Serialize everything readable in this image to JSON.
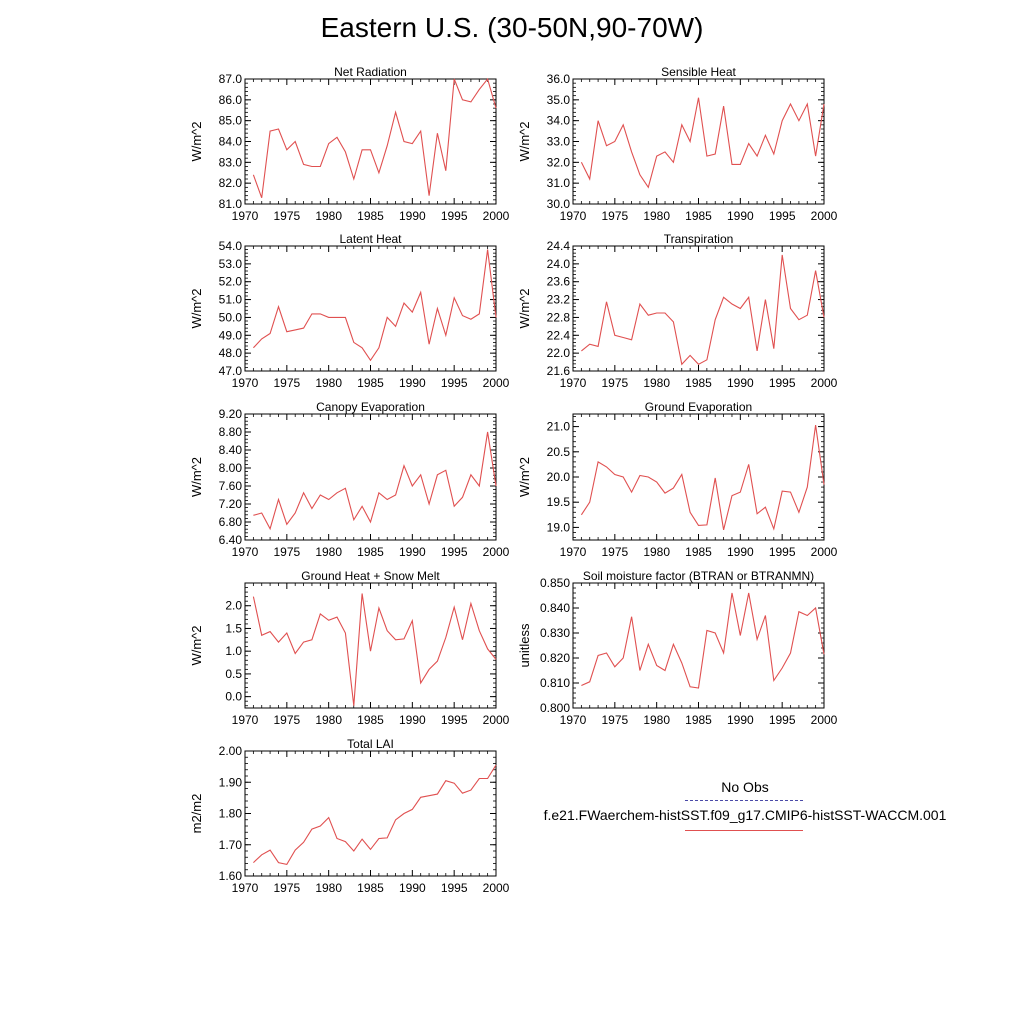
{
  "title": "Eastern U.S. (30-50N,90-70W)",
  "legend": {
    "obs_label": "No Obs",
    "obs_color": "#4a4aa8",
    "model_label": "f.e21.FWaerchem-histSST.f09_g17.CMIP6-histSST-WACCM.001",
    "model_color": "#e05050"
  },
  "chart_data": [
    {
      "type": "line",
      "title": "Net Radiation",
      "ylabel": "W/m^2",
      "xlim": [
        1970,
        2000
      ],
      "ylim": [
        81.0,
        87.0
      ],
      "yticks": [
        "81.0",
        "82.0",
        "83.0",
        "84.0",
        "85.0",
        "86.0",
        "87.0"
      ],
      "xticks": [
        "1970",
        "1975",
        "1980",
        "1985",
        "1990",
        "1995",
        "2000"
      ],
      "x": [
        1971,
        1972,
        1973,
        1974,
        1975,
        1976,
        1977,
        1978,
        1979,
        1980,
        1981,
        1982,
        1983,
        1984,
        1985,
        1986,
        1987,
        1988,
        1989,
        1990,
        1991,
        1992,
        1993,
        1994,
        1995,
        1996,
        1997,
        1998,
        1999,
        2000
      ],
      "series": [
        {
          "values": [
            82.4,
            81.3,
            84.5,
            84.6,
            83.6,
            84.0,
            82.9,
            82.8,
            82.8,
            83.9,
            84.2,
            83.5,
            82.2,
            83.6,
            83.6,
            82.5,
            83.8,
            85.4,
            84.0,
            83.9,
            84.5,
            81.4,
            84.4,
            82.6,
            87.0,
            86.0,
            85.9,
            86.5,
            87.0,
            85.6
          ]
        }
      ]
    },
    {
      "type": "line",
      "title": "Sensible Heat",
      "ylabel": "W/m^2",
      "xlim": [
        1970,
        2000
      ],
      "ylim": [
        30.0,
        36.0
      ],
      "yticks": [
        "30.0",
        "31.0",
        "32.0",
        "33.0",
        "34.0",
        "35.0",
        "36.0"
      ],
      "xticks": [
        "1970",
        "1975",
        "1980",
        "1985",
        "1990",
        "1995",
        "2000"
      ],
      "x": [
        1971,
        1972,
        1973,
        1974,
        1975,
        1976,
        1977,
        1978,
        1979,
        1980,
        1981,
        1982,
        1983,
        1984,
        1985,
        1986,
        1987,
        1988,
        1989,
        1990,
        1991,
        1992,
        1993,
        1994,
        1995,
        1996,
        1997,
        1998,
        1999,
        2000
      ],
      "series": [
        {
          "values": [
            32.0,
            31.2,
            34.0,
            32.8,
            33.0,
            33.8,
            32.5,
            31.4,
            30.8,
            32.3,
            32.5,
            32.0,
            33.8,
            33.0,
            35.1,
            32.3,
            32.4,
            34.7,
            31.9,
            31.9,
            32.9,
            32.3,
            33.3,
            32.4,
            34.0,
            34.8,
            34.0,
            34.8,
            32.3,
            34.8
          ]
        }
      ]
    },
    {
      "type": "line",
      "title": "Latent Heat",
      "ylabel": "W/m^2",
      "xlim": [
        1970,
        2000
      ],
      "ylim": [
        47.0,
        54.0
      ],
      "yticks": [
        "47.0",
        "48.0",
        "49.0",
        "50.0",
        "51.0",
        "52.0",
        "53.0",
        "54.0"
      ],
      "xticks": [
        "1970",
        "1975",
        "1980",
        "1985",
        "1990",
        "1995",
        "2000"
      ],
      "x": [
        1971,
        1972,
        1973,
        1974,
        1975,
        1976,
        1977,
        1978,
        1979,
        1980,
        1981,
        1982,
        1983,
        1984,
        1985,
        1986,
        1987,
        1988,
        1989,
        1990,
        1991,
        1992,
        1993,
        1994,
        1995,
        1996,
        1997,
        1998,
        1999,
        2000
      ],
      "series": [
        {
          "values": [
            48.3,
            48.8,
            49.1,
            50.6,
            49.2,
            49.3,
            49.4,
            50.2,
            50.2,
            50.0,
            50.0,
            50.0,
            48.6,
            48.3,
            47.6,
            48.3,
            50.0,
            49.5,
            50.8,
            50.3,
            51.4,
            48.5,
            50.5,
            49.0,
            51.1,
            50.1,
            49.9,
            50.2,
            53.8,
            50.0
          ]
        }
      ]
    },
    {
      "type": "line",
      "title": "Transpiration",
      "ylabel": "W/m^2",
      "xlim": [
        1970,
        2000
      ],
      "ylim": [
        21.6,
        24.4
      ],
      "yticks": [
        "21.6",
        "22.0",
        "22.4",
        "22.8",
        "23.2",
        "23.6",
        "24.0",
        "24.4"
      ],
      "xticks": [
        "1970",
        "1975",
        "1980",
        "1985",
        "1990",
        "1995",
        "2000"
      ],
      "x": [
        1971,
        1972,
        1973,
        1974,
        1975,
        1976,
        1977,
        1978,
        1979,
        1980,
        1981,
        1982,
        1983,
        1984,
        1985,
        1986,
        1987,
        1988,
        1989,
        1990,
        1991,
        1992,
        1993,
        1994,
        1995,
        1996,
        1997,
        1998,
        1999,
        2000
      ],
      "series": [
        {
          "values": [
            22.05,
            22.2,
            22.15,
            23.15,
            22.4,
            22.35,
            22.3,
            23.1,
            22.85,
            22.9,
            22.9,
            22.7,
            21.75,
            21.95,
            21.75,
            21.85,
            22.75,
            23.25,
            23.1,
            23.0,
            23.25,
            22.05,
            23.2,
            22.1,
            24.2,
            23.0,
            22.75,
            22.85,
            23.85,
            22.8
          ]
        }
      ]
    },
    {
      "type": "line",
      "title": "Canopy Evaporation",
      "ylabel": "W/m^2",
      "xlim": [
        1970,
        2000
      ],
      "ylim": [
        6.4,
        9.2
      ],
      "yticks": [
        "6.40",
        "6.80",
        "7.20",
        "7.60",
        "8.00",
        "8.40",
        "8.80",
        "9.20"
      ],
      "xticks": [
        "1970",
        "1975",
        "1980",
        "1985",
        "1990",
        "1995",
        "2000"
      ],
      "x": [
        1971,
        1972,
        1973,
        1974,
        1975,
        1976,
        1977,
        1978,
        1979,
        1980,
        1981,
        1982,
        1983,
        1984,
        1985,
        1986,
        1987,
        1988,
        1989,
        1990,
        1991,
        1992,
        1993,
        1994,
        1995,
        1996,
        1997,
        1998,
        1999,
        2000
      ],
      "series": [
        {
          "values": [
            6.95,
            7.0,
            6.65,
            7.3,
            6.75,
            7.0,
            7.45,
            7.1,
            7.4,
            7.3,
            7.45,
            7.55,
            6.85,
            7.15,
            6.8,
            7.45,
            7.3,
            7.4,
            8.05,
            7.6,
            7.85,
            7.2,
            7.85,
            7.95,
            7.15,
            7.35,
            7.85,
            7.6,
            8.8,
            7.6
          ]
        }
      ]
    },
    {
      "type": "line",
      "title": "Ground Evaporation",
      "ylabel": "W/m^2",
      "xlim": [
        1970,
        2000
      ],
      "ylim": [
        18.75,
        21.25
      ],
      "yticks": [
        "19.0",
        "19.5",
        "20.0",
        "20.5",
        "21.0"
      ],
      "yticks_values": [
        19.0,
        19.5,
        20.0,
        20.5,
        21.0
      ],
      "xticks": [
        "1970",
        "1975",
        "1980",
        "1985",
        "1990",
        "1995",
        "2000"
      ],
      "x": [
        1971,
        1972,
        1973,
        1974,
        1975,
        1976,
        1977,
        1978,
        1979,
        1980,
        1981,
        1982,
        1983,
        1984,
        1985,
        1986,
        1987,
        1988,
        1989,
        1990,
        1991,
        1992,
        1993,
        1994,
        1995,
        1996,
        1997,
        1998,
        1999,
        2000
      ],
      "series": [
        {
          "values": [
            19.25,
            19.5,
            20.3,
            20.2,
            20.05,
            20.0,
            19.7,
            20.03,
            20.0,
            19.9,
            19.68,
            19.78,
            20.05,
            19.3,
            19.04,
            19.05,
            19.98,
            18.95,
            19.63,
            19.7,
            20.25,
            19.27,
            19.4,
            18.97,
            19.72,
            19.7,
            19.3,
            19.8,
            21.03,
            19.85
          ]
        }
      ]
    },
    {
      "type": "line",
      "title": "Ground Heat + Snow Melt",
      "ylabel": "W/m^2",
      "xlim": [
        1970,
        2000
      ],
      "ylim": [
        -0.25,
        2.5
      ],
      "yticks": [
        "0.0",
        "0.5",
        "1.0",
        "1.5",
        "2.0"
      ],
      "yticks_values": [
        0.0,
        0.5,
        1.0,
        1.5,
        2.0
      ],
      "xticks": [
        "1970",
        "1975",
        "1980",
        "1985",
        "1990",
        "1995",
        "2000"
      ],
      "x": [
        1971,
        1972,
        1973,
        1974,
        1975,
        1976,
        1977,
        1978,
        1979,
        1980,
        1981,
        1982,
        1983,
        1984,
        1985,
        1986,
        1987,
        1988,
        1989,
        1990,
        1991,
        1992,
        1993,
        1994,
        1995,
        1996,
        1997,
        1998,
        1999,
        2000
      ],
      "series": [
        {
          "values": [
            2.2,
            1.35,
            1.43,
            1.2,
            1.4,
            0.95,
            1.2,
            1.25,
            1.82,
            1.68,
            1.75,
            1.4,
            -0.2,
            2.27,
            1.0,
            1.95,
            1.45,
            1.25,
            1.27,
            1.67,
            0.3,
            0.6,
            0.78,
            1.3,
            1.97,
            1.25,
            2.05,
            1.45,
            1.05,
            0.82
          ]
        }
      ]
    },
    {
      "type": "line",
      "title": "Soil moisture factor (BTRAN or BTRANMN)",
      "ylabel": "unitless",
      "xlim": [
        1970,
        2000
      ],
      "ylim": [
        0.8,
        0.85
      ],
      "yticks": [
        "0.800",
        "0.810",
        "0.820",
        "0.830",
        "0.840",
        "0.850"
      ],
      "xticks": [
        "1970",
        "1975",
        "1980",
        "1985",
        "1990",
        "1995",
        "2000"
      ],
      "x": [
        1971,
        1972,
        1973,
        1974,
        1975,
        1976,
        1977,
        1978,
        1979,
        1980,
        1981,
        1982,
        1983,
        1984,
        1985,
        1986,
        1987,
        1988,
        1989,
        1990,
        1991,
        1992,
        1993,
        1994,
        1995,
        1996,
        1997,
        1998,
        1999,
        2000
      ],
      "series": [
        {
          "values": [
            0.809,
            0.8105,
            0.821,
            0.822,
            0.8165,
            0.82,
            0.8365,
            0.815,
            0.8255,
            0.817,
            0.815,
            0.8255,
            0.818,
            0.8085,
            0.808,
            0.831,
            0.83,
            0.822,
            0.846,
            0.829,
            0.846,
            0.8275,
            0.837,
            0.811,
            0.816,
            0.822,
            0.8385,
            0.837,
            0.84,
            0.8215
          ]
        }
      ]
    },
    {
      "type": "line",
      "title": "Total LAI",
      "ylabel": "m2/m2",
      "xlim": [
        1970,
        2000
      ],
      "ylim": [
        1.6,
        2.0
      ],
      "yticks": [
        "1.60",
        "1.70",
        "1.80",
        "1.90",
        "2.00"
      ],
      "xticks": [
        "1970",
        "1975",
        "1980",
        "1985",
        "1990",
        "1995",
        "2000"
      ],
      "x": [
        1971,
        1972,
        1973,
        1974,
        1975,
        1976,
        1977,
        1978,
        1979,
        1980,
        1981,
        1982,
        1983,
        1984,
        1985,
        1986,
        1987,
        1988,
        1989,
        1990,
        1991,
        1992,
        1993,
        1994,
        1995,
        1996,
        1997,
        1998,
        1999,
        2000
      ],
      "series": [
        {
          "values": [
            1.643,
            1.668,
            1.683,
            1.643,
            1.637,
            1.683,
            1.708,
            1.75,
            1.76,
            1.787,
            1.72,
            1.71,
            1.68,
            1.718,
            1.685,
            1.72,
            1.722,
            1.78,
            1.8,
            1.813,
            1.852,
            1.857,
            1.862,
            1.905,
            1.897,
            1.865,
            1.875,
            1.912,
            1.912,
            1.955
          ]
        }
      ]
    }
  ]
}
